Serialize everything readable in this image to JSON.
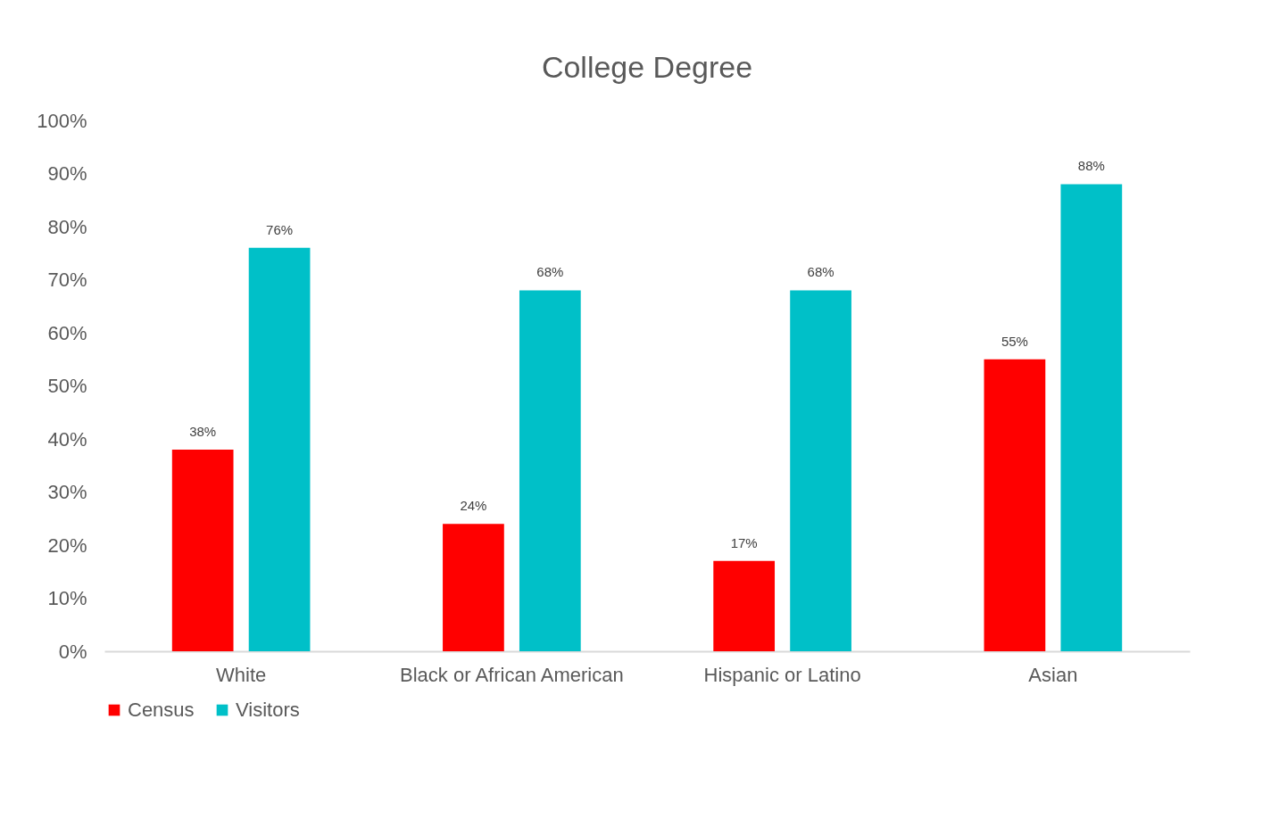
{
  "chart_data": {
    "type": "bar",
    "title": "College Degree",
    "categories": [
      "White",
      "Black or African American",
      "Hispanic or Latino",
      "Asian"
    ],
    "series": [
      {
        "name": "Census",
        "color": "#ff0000",
        "values": [
          38,
          24,
          17,
          55
        ],
        "value_labels": [
          "38%",
          "24%",
          "17%",
          "55%"
        ]
      },
      {
        "name": "Visitors",
        "color": "#00c0c8",
        "values": [
          76,
          68,
          68,
          88
        ],
        "value_labels": [
          "76%",
          "68%",
          "68%",
          "88%"
        ]
      }
    ],
    "ylim": [
      0,
      100
    ],
    "yticks": [
      {
        "value": 0,
        "label": "0%"
      },
      {
        "value": 10,
        "label": "10%"
      },
      {
        "value": 20,
        "label": "20%"
      },
      {
        "value": 30,
        "label": "30%"
      },
      {
        "value": 40,
        "label": "40%"
      },
      {
        "value": 50,
        "label": "50%"
      },
      {
        "value": 60,
        "label": "60%"
      },
      {
        "value": 70,
        "label": "70%"
      },
      {
        "value": 80,
        "label": "80%"
      },
      {
        "value": 90,
        "label": "90%"
      },
      {
        "value": 100,
        "label": "100%"
      }
    ],
    "grid": false,
    "legend": "bottom"
  }
}
